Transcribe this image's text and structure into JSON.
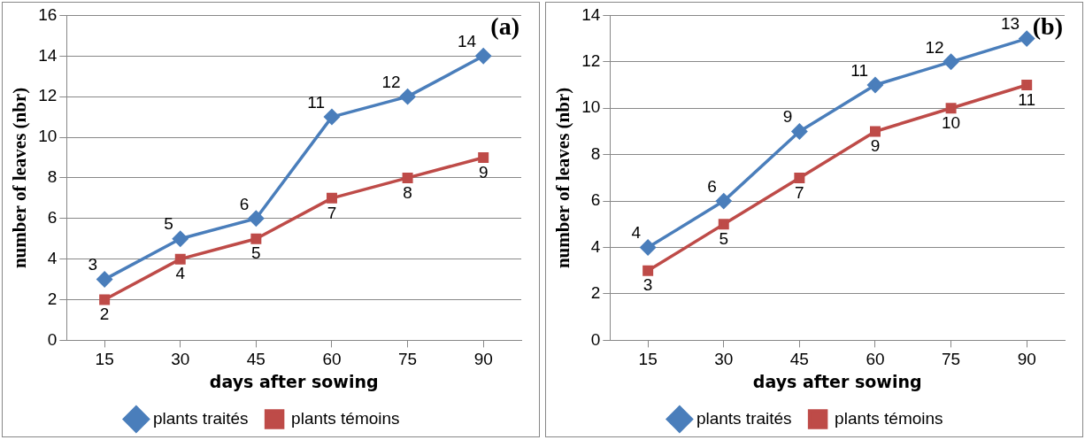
{
  "chart_data": [
    {
      "type": "line",
      "title": "(a)",
      "xlabel": "days after sowing",
      "ylabel": "number of leaves (nbr)",
      "categories": [
        "15",
        "30",
        "45",
        "60",
        "75",
        "90"
      ],
      "series": [
        {
          "name": "plants traités",
          "color": "#4a7ebb",
          "marker": "diamond",
          "values": [
            3,
            5,
            6,
            11,
            12,
            14
          ]
        },
        {
          "name": "plants témoins",
          "color": "#be4b48",
          "marker": "square",
          "values": [
            2,
            4,
            5,
            7,
            8,
            9
          ]
        }
      ],
      "ylim": [
        0,
        16
      ],
      "yticks": [
        0,
        2,
        4,
        6,
        8,
        10,
        12,
        14,
        16
      ],
      "grid": "y",
      "legend": "bottom",
      "data_labels": true
    },
    {
      "type": "line",
      "title": "(b)",
      "xlabel": "days after sowing",
      "ylabel": "number of leaves (nbr)",
      "categories": [
        "15",
        "30",
        "45",
        "60",
        "75",
        "90"
      ],
      "series": [
        {
          "name": "plants traités",
          "color": "#4a7ebb",
          "marker": "diamond",
          "values": [
            4,
            6,
            9,
            11,
            12,
            13
          ]
        },
        {
          "name": "plants témoins",
          "color": "#be4b48",
          "marker": "square",
          "values": [
            3,
            5,
            7,
            9,
            10,
            11
          ]
        }
      ],
      "ylim": [
        0,
        14
      ],
      "yticks": [
        0,
        2,
        4,
        6,
        8,
        10,
        12,
        14
      ],
      "grid": "y",
      "legend": "bottom",
      "data_labels": true
    }
  ]
}
